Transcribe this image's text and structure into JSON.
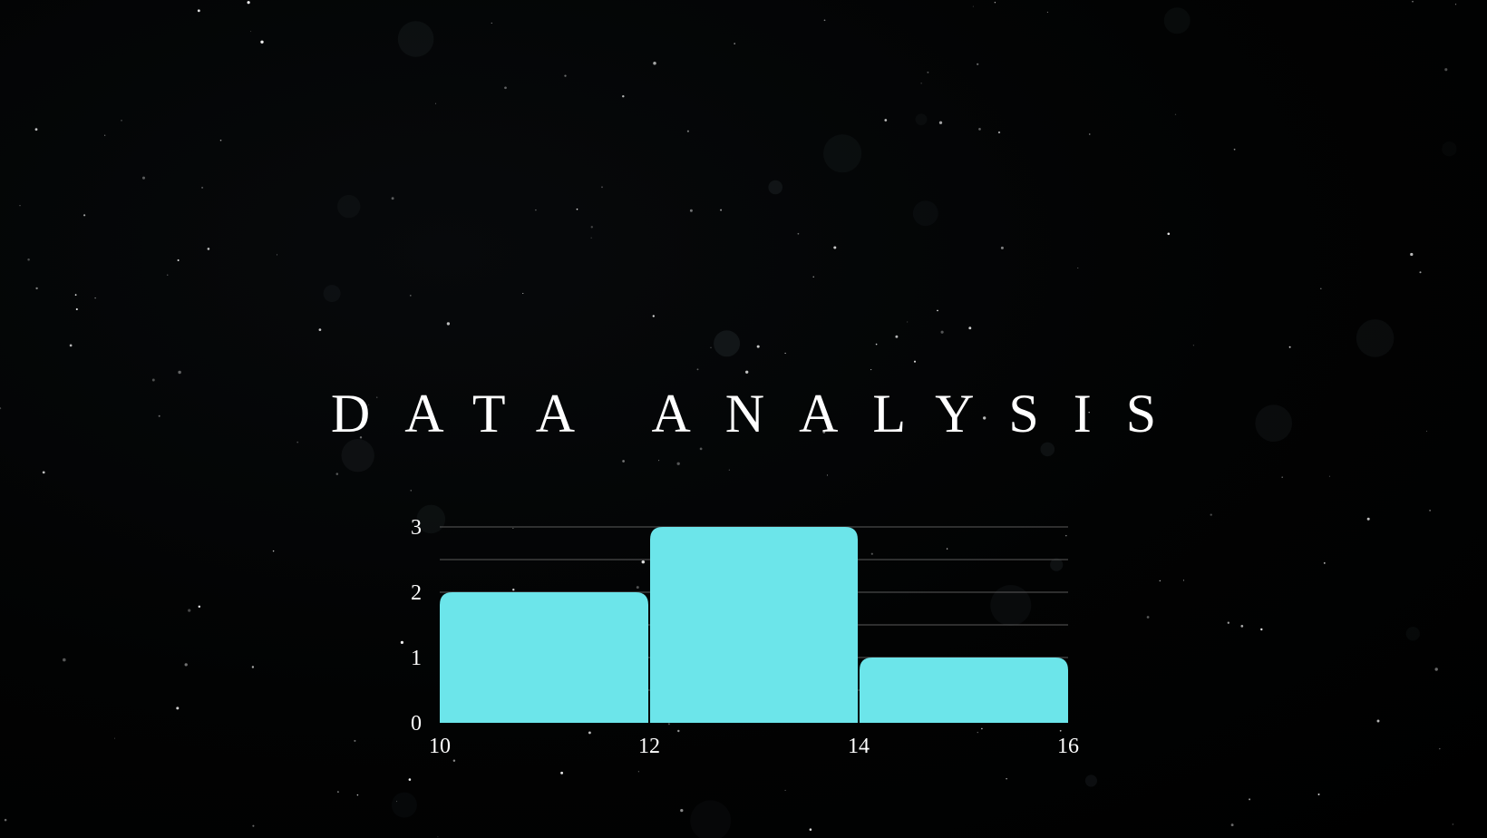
{
  "slide": {
    "title": "DATA ANALYSIS",
    "background_color": "#000000"
  },
  "chart_data": {
    "type": "bar",
    "subtype": "histogram",
    "bins": [
      {
        "start": 10,
        "end": 12,
        "value": 2
      },
      {
        "start": 12,
        "end": 14,
        "value": 3
      },
      {
        "start": 14,
        "end": 16,
        "value": 1
      }
    ],
    "x_ticks": [
      "10",
      "12",
      "14",
      "16"
    ],
    "y_ticks": [
      "0",
      "1",
      "2",
      "3"
    ],
    "xlim": [
      10,
      16
    ],
    "ylim": [
      0,
      3
    ],
    "grid": "horizontal",
    "grid_step": 0.5,
    "bar_color": "#6ce5ea",
    "title": "",
    "xlabel": "",
    "ylabel": "",
    "legend": "none"
  }
}
